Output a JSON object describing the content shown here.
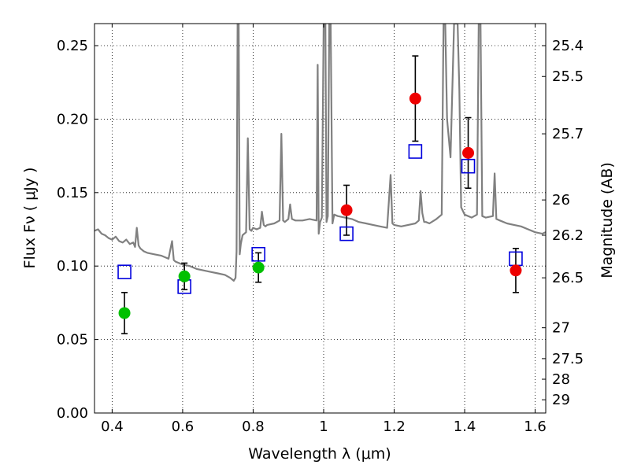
{
  "chart_data": {
    "type": "scatter",
    "xlabel": "Wavelength  λ (μm)",
    "ylabel": "Flux  Fν  ( μJy )",
    "y2label": "Magnitude (AB)",
    "xlim": [
      0.35,
      1.63
    ],
    "ylim": [
      0.0,
      0.265
    ],
    "grid": true,
    "x_ticks": [
      0.4,
      0.6,
      0.8,
      1.0,
      1.2,
      1.4,
      1.6
    ],
    "x_tick_labels": [
      "0.4",
      "0.6",
      "0.8",
      "1",
      "1.2",
      "1.4",
      "1.6"
    ],
    "y_ticks": [
      0.0,
      0.05,
      0.1,
      0.15,
      0.2,
      0.25
    ],
    "y_tick_labels": [
      "0.00",
      "0.05",
      "0.10",
      "0.15",
      "0.20",
      "0.25"
    ],
    "y2_ticks": [
      {
        "flux": 0.25,
        "label": "25.4"
      },
      {
        "flux": 0.229,
        "label": "25.5"
      },
      {
        "flux": 0.19,
        "label": "25.7"
      },
      {
        "flux": 0.145,
        "label": "26"
      },
      {
        "flux": 0.121,
        "label": "26.2"
      },
      {
        "flux": 0.092,
        "label": "26.5"
      },
      {
        "flux": 0.058,
        "label": "27"
      },
      {
        "flux": 0.037,
        "label": "27.5"
      },
      {
        "flux": 0.023,
        "label": "28"
      },
      {
        "flux": 0.009,
        "label": "29"
      }
    ],
    "series": [
      {
        "kind": "model-spectrum",
        "color": "#808080",
        "x": [
          0.35,
          0.36,
          0.37,
          0.38,
          0.39,
          0.4,
          0.41,
          0.42,
          0.43,
          0.44,
          0.45,
          0.46,
          0.465,
          0.47,
          0.475,
          0.48,
          0.49,
          0.5,
          0.52,
          0.54,
          0.56,
          0.565,
          0.57,
          0.575,
          0.58,
          0.6,
          0.62,
          0.64,
          0.66,
          0.68,
          0.7,
          0.72,
          0.735,
          0.745,
          0.75,
          0.753,
          0.756,
          0.759,
          0.762,
          0.765,
          0.77,
          0.78,
          0.785,
          0.79,
          0.795,
          0.8,
          0.81,
          0.82,
          0.825,
          0.83,
          0.835,
          0.84,
          0.86,
          0.875,
          0.88,
          0.885,
          0.89,
          0.9,
          0.905,
          0.91,
          0.92,
          0.94,
          0.96,
          0.98,
          0.983,
          0.986,
          0.99,
          0.995,
          1.0,
          1.005,
          1.008,
          1.012,
          1.016,
          1.02,
          1.025,
          1.03,
          1.04,
          1.06,
          1.08,
          1.1,
          1.12,
          1.14,
          1.16,
          1.18,
          1.19,
          1.195,
          1.2,
          1.22,
          1.24,
          1.26,
          1.27,
          1.275,
          1.28,
          1.285,
          1.29,
          1.3,
          1.32,
          1.335,
          1.34,
          1.345,
          1.35,
          1.36,
          1.37,
          1.38,
          1.385,
          1.39,
          1.4,
          1.42,
          1.435,
          1.44,
          1.445,
          1.45,
          1.46,
          1.48,
          1.485,
          1.49,
          1.5,
          1.52,
          1.54,
          1.56,
          1.58,
          1.6,
          1.62,
          1.63
        ],
        "y": [
          0.124,
          0.125,
          0.122,
          0.121,
          0.119,
          0.118,
          0.12,
          0.117,
          0.116,
          0.118,
          0.115,
          0.116,
          0.113,
          0.126,
          0.114,
          0.112,
          0.11,
          0.109,
          0.108,
          0.107,
          0.105,
          0.111,
          0.117,
          0.104,
          0.103,
          0.101,
          0.1,
          0.098,
          0.097,
          0.096,
          0.095,
          0.094,
          0.092,
          0.09,
          0.092,
          0.11,
          0.265,
          0.265,
          0.108,
          0.115,
          0.121,
          0.123,
          0.187,
          0.125,
          0.124,
          0.126,
          0.125,
          0.126,
          0.137,
          0.128,
          0.127,
          0.128,
          0.129,
          0.131,
          0.19,
          0.131,
          0.13,
          0.132,
          0.142,
          0.132,
          0.131,
          0.131,
          0.132,
          0.131,
          0.237,
          0.122,
          0.13,
          0.133,
          0.265,
          0.265,
          0.13,
          0.134,
          0.265,
          0.265,
          0.129,
          0.135,
          0.134,
          0.133,
          0.132,
          0.13,
          0.129,
          0.128,
          0.127,
          0.126,
          0.162,
          0.129,
          0.128,
          0.127,
          0.128,
          0.129,
          0.131,
          0.151,
          0.136,
          0.13,
          0.13,
          0.129,
          0.132,
          0.135,
          0.265,
          0.265,
          0.2,
          0.174,
          0.265,
          0.265,
          0.22,
          0.14,
          0.135,
          0.133,
          0.135,
          0.265,
          0.265,
          0.134,
          0.133,
          0.134,
          0.163,
          0.132,
          0.131,
          0.129,
          0.128,
          0.127,
          0.125,
          0.123,
          0.122,
          0.123
        ]
      },
      {
        "kind": "photometry-observed",
        "color": "#00c000",
        "x": [
          0.435,
          0.605,
          0.815
        ],
        "y": [
          0.068,
          0.093,
          0.099
        ],
        "err": [
          0.014,
          0.009,
          0.01
        ]
      },
      {
        "kind": "photometry-observed",
        "color": "#ee0000",
        "x": [
          1.065,
          1.26,
          1.41,
          1.545
        ],
        "y": [
          0.138,
          0.214,
          0.177,
          0.097
        ],
        "err": [
          0.017,
          0.029,
          0.024,
          0.015
        ]
      },
      {
        "kind": "photometry-model",
        "color": "#0000dd",
        "x": [
          0.435,
          0.605,
          0.815,
          1.065,
          1.26,
          1.41,
          1.545
        ],
        "y": [
          0.096,
          0.086,
          0.108,
          0.122,
          0.178,
          0.168,
          0.105
        ]
      }
    ]
  }
}
